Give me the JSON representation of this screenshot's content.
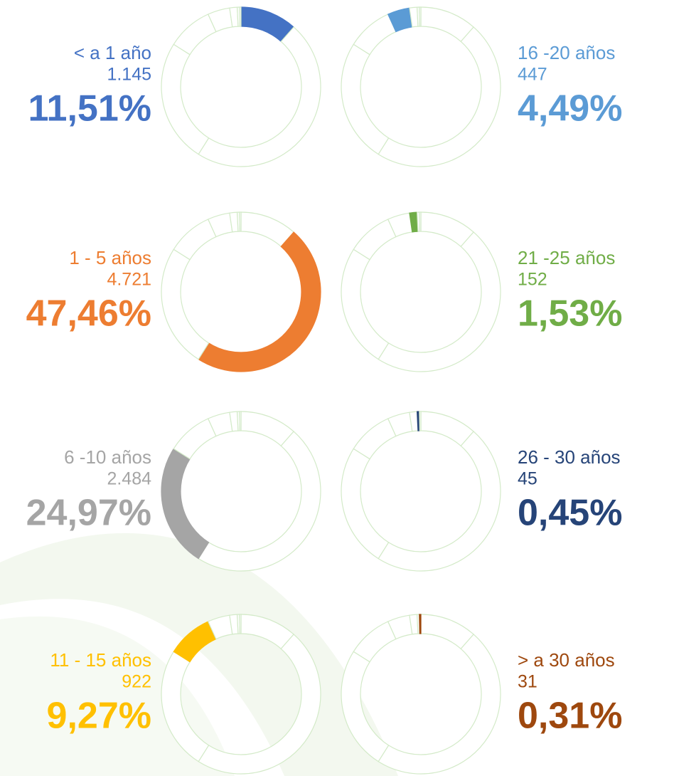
{
  "chart_data": {
    "type": "donut",
    "categories": [
      "< a 1 año",
      "1 - 5 años",
      "6 -10 años",
      "11 - 15 años",
      "16 -20 años",
      "21 -25 años",
      "26 - 30 años",
      "> a 30 años"
    ],
    "counts": [
      1145,
      4721,
      2484,
      922,
      447,
      152,
      45,
      31
    ],
    "count_labels": [
      "1.145",
      "4.721",
      "2.484",
      "922",
      "447",
      "152",
      "45",
      "31"
    ],
    "values": [
      11.51,
      47.46,
      24.97,
      9.27,
      4.49,
      1.53,
      0.45,
      0.31
    ],
    "value_labels": [
      "11,51%",
      "47,46%",
      "24,97%",
      "9,27%",
      "4,49%",
      "1,53%",
      "0,45%",
      "0,31%"
    ],
    "colors": [
      "#4472c4",
      "#ed7d31",
      "#a5a5a5",
      "#ffc000",
      "#5b9bd5",
      "#70ad47",
      "#264478",
      "#9e480e"
    ]
  }
}
